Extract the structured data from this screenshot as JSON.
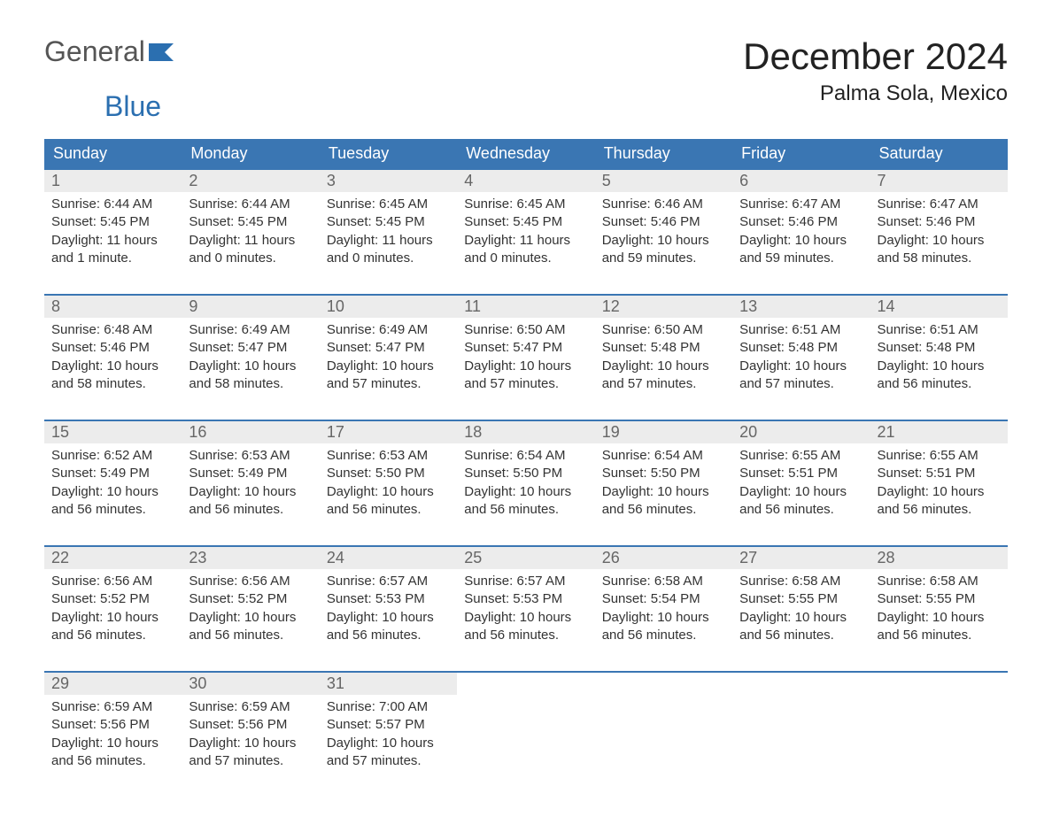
{
  "logo": {
    "part1": "General",
    "part2": "Blue"
  },
  "title": "December 2024",
  "location": "Palma Sola, Mexico",
  "colors": {
    "header_bg": "#3a76b3",
    "header_fg": "#ffffff",
    "daynum_bg": "#ececec",
    "daynum_fg": "#666666",
    "body_fg": "#333333",
    "row_border": "#3a76b3",
    "logo_accent": "#2b6fb0"
  },
  "typography": {
    "title_fontsize": 42,
    "location_fontsize": 24,
    "header_fontsize": 18,
    "daynum_fontsize": 18,
    "body_fontsize": 15
  },
  "weekdays": [
    "Sunday",
    "Monday",
    "Tuesday",
    "Wednesday",
    "Thursday",
    "Friday",
    "Saturday"
  ],
  "labels": {
    "sunrise": "Sunrise:",
    "sunset": "Sunset:",
    "daylight": "Daylight:"
  },
  "weeks": [
    [
      {
        "d": "1",
        "sr": "6:44 AM",
        "ss": "5:45 PM",
        "dl": "11 hours and 1 minute."
      },
      {
        "d": "2",
        "sr": "6:44 AM",
        "ss": "5:45 PM",
        "dl": "11 hours and 0 minutes."
      },
      {
        "d": "3",
        "sr": "6:45 AM",
        "ss": "5:45 PM",
        "dl": "11 hours and 0 minutes."
      },
      {
        "d": "4",
        "sr": "6:45 AM",
        "ss": "5:45 PM",
        "dl": "11 hours and 0 minutes."
      },
      {
        "d": "5",
        "sr": "6:46 AM",
        "ss": "5:46 PM",
        "dl": "10 hours and 59 minutes."
      },
      {
        "d": "6",
        "sr": "6:47 AM",
        "ss": "5:46 PM",
        "dl": "10 hours and 59 minutes."
      },
      {
        "d": "7",
        "sr": "6:47 AM",
        "ss": "5:46 PM",
        "dl": "10 hours and 58 minutes."
      }
    ],
    [
      {
        "d": "8",
        "sr": "6:48 AM",
        "ss": "5:46 PM",
        "dl": "10 hours and 58 minutes."
      },
      {
        "d": "9",
        "sr": "6:49 AM",
        "ss": "5:47 PM",
        "dl": "10 hours and 58 minutes."
      },
      {
        "d": "10",
        "sr": "6:49 AM",
        "ss": "5:47 PM",
        "dl": "10 hours and 57 minutes."
      },
      {
        "d": "11",
        "sr": "6:50 AM",
        "ss": "5:47 PM",
        "dl": "10 hours and 57 minutes."
      },
      {
        "d": "12",
        "sr": "6:50 AM",
        "ss": "5:48 PM",
        "dl": "10 hours and 57 minutes."
      },
      {
        "d": "13",
        "sr": "6:51 AM",
        "ss": "5:48 PM",
        "dl": "10 hours and 57 minutes."
      },
      {
        "d": "14",
        "sr": "6:51 AM",
        "ss": "5:48 PM",
        "dl": "10 hours and 56 minutes."
      }
    ],
    [
      {
        "d": "15",
        "sr": "6:52 AM",
        "ss": "5:49 PM",
        "dl": "10 hours and 56 minutes."
      },
      {
        "d": "16",
        "sr": "6:53 AM",
        "ss": "5:49 PM",
        "dl": "10 hours and 56 minutes."
      },
      {
        "d": "17",
        "sr": "6:53 AM",
        "ss": "5:50 PM",
        "dl": "10 hours and 56 minutes."
      },
      {
        "d": "18",
        "sr": "6:54 AM",
        "ss": "5:50 PM",
        "dl": "10 hours and 56 minutes."
      },
      {
        "d": "19",
        "sr": "6:54 AM",
        "ss": "5:50 PM",
        "dl": "10 hours and 56 minutes."
      },
      {
        "d": "20",
        "sr": "6:55 AM",
        "ss": "5:51 PM",
        "dl": "10 hours and 56 minutes."
      },
      {
        "d": "21",
        "sr": "6:55 AM",
        "ss": "5:51 PM",
        "dl": "10 hours and 56 minutes."
      }
    ],
    [
      {
        "d": "22",
        "sr": "6:56 AM",
        "ss": "5:52 PM",
        "dl": "10 hours and 56 minutes."
      },
      {
        "d": "23",
        "sr": "6:56 AM",
        "ss": "5:52 PM",
        "dl": "10 hours and 56 minutes."
      },
      {
        "d": "24",
        "sr": "6:57 AM",
        "ss": "5:53 PM",
        "dl": "10 hours and 56 minutes."
      },
      {
        "d": "25",
        "sr": "6:57 AM",
        "ss": "5:53 PM",
        "dl": "10 hours and 56 minutes."
      },
      {
        "d": "26",
        "sr": "6:58 AM",
        "ss": "5:54 PM",
        "dl": "10 hours and 56 minutes."
      },
      {
        "d": "27",
        "sr": "6:58 AM",
        "ss": "5:55 PM",
        "dl": "10 hours and 56 minutes."
      },
      {
        "d": "28",
        "sr": "6:58 AM",
        "ss": "5:55 PM",
        "dl": "10 hours and 56 minutes."
      }
    ],
    [
      {
        "d": "29",
        "sr": "6:59 AM",
        "ss": "5:56 PM",
        "dl": "10 hours and 56 minutes."
      },
      {
        "d": "30",
        "sr": "6:59 AM",
        "ss": "5:56 PM",
        "dl": "10 hours and 57 minutes."
      },
      {
        "d": "31",
        "sr": "7:00 AM",
        "ss": "5:57 PM",
        "dl": "10 hours and 57 minutes."
      },
      null,
      null,
      null,
      null
    ]
  ]
}
